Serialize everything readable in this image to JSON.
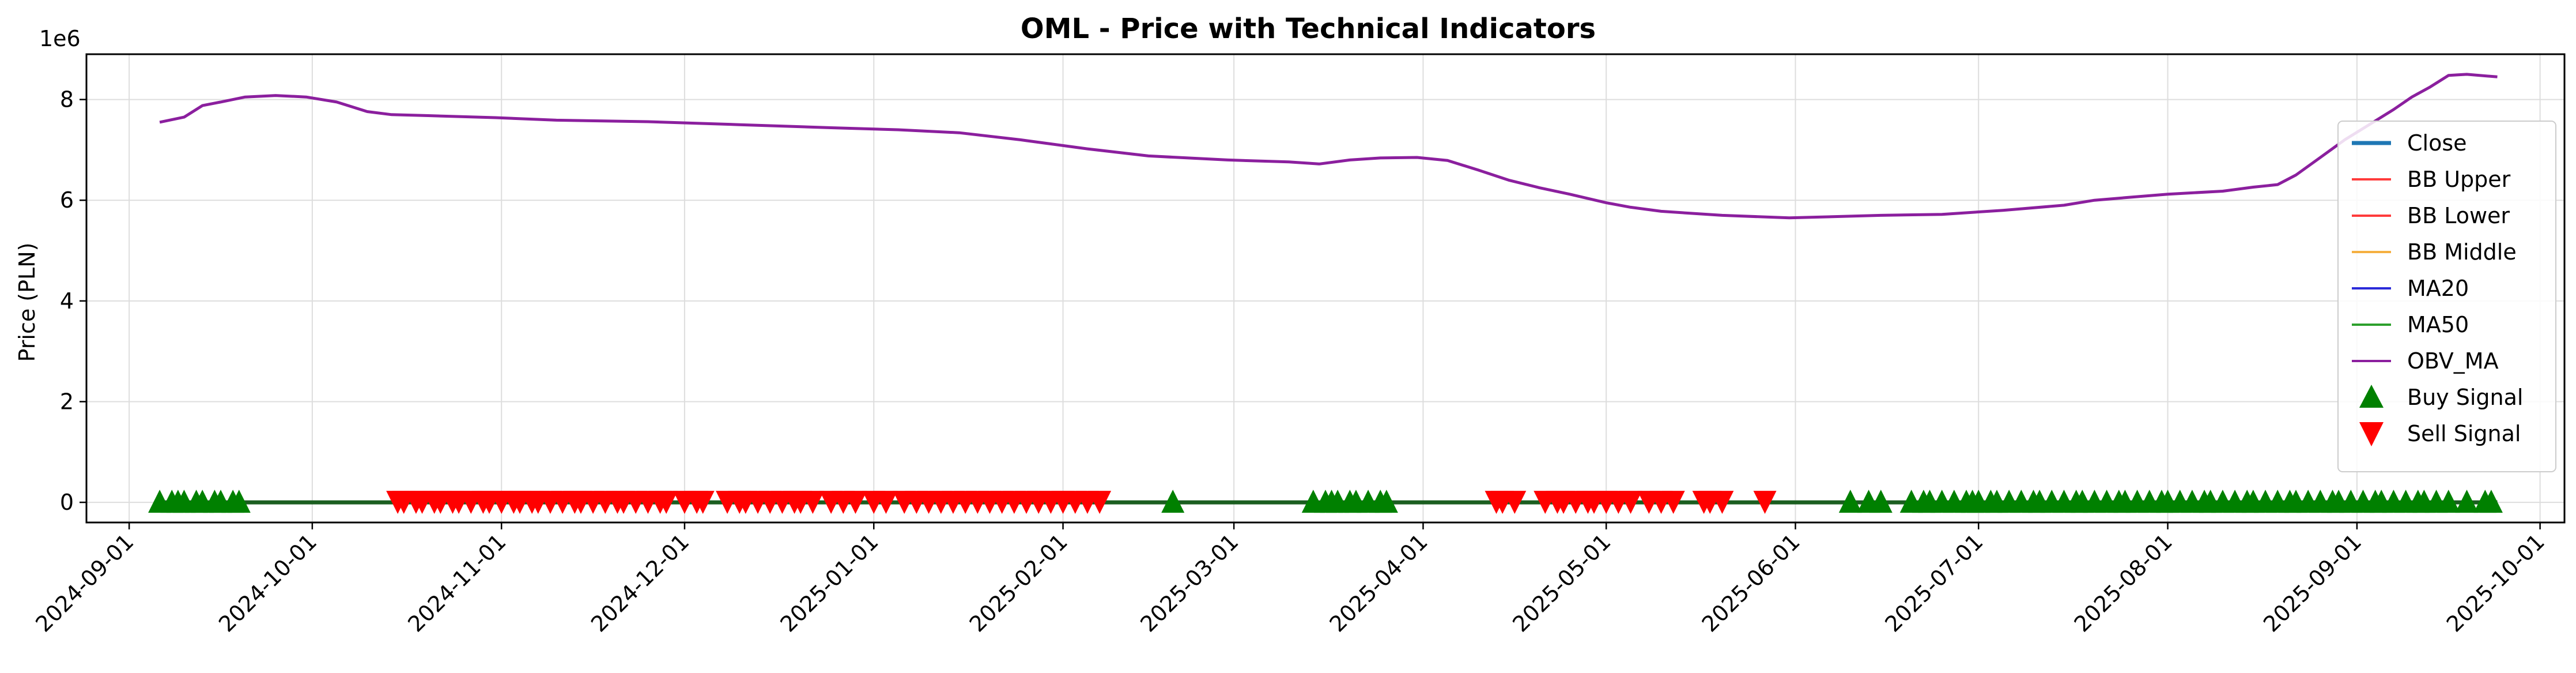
{
  "chart_data": {
    "type": "line",
    "title": "OML - Price with Technical Indicators",
    "ylabel": "Price (PLN)",
    "xlabel": "",
    "y_multiplier": "1e6",
    "ylim": [
      -400000,
      8900000
    ],
    "xlim": [
      "2024-08-25",
      "2025-10-05"
    ],
    "y_ticks": [
      0,
      2000000,
      4000000,
      6000000,
      8000000
    ],
    "y_tick_labels": [
      "0",
      "2",
      "4",
      "6",
      "8"
    ],
    "x_ticks": [
      "2024-09-01",
      "2024-10-01",
      "2024-11-01",
      "2024-12-01",
      "2025-01-01",
      "2025-02-01",
      "2025-03-01",
      "2025-04-01",
      "2025-05-01",
      "2025-06-01",
      "2025-07-01",
      "2025-08-01",
      "2025-09-01",
      "2025-10-01"
    ],
    "grid": true,
    "legend_position": "right",
    "colors": {
      "close": "#1f77b4",
      "bb_upper": "#ff3b3b",
      "bb_lower": "#ff3b3b",
      "bb_middle": "#f5b041",
      "ma20": "#2b2bd9",
      "ma50": "#2ca02c",
      "obv_ma": "#8b1f9e",
      "buy": "#008000",
      "sell": "#ff0000",
      "price_flat": "#1b5e20"
    },
    "legend": [
      {
        "key": "close",
        "label": "Close",
        "kind": "line-thick"
      },
      {
        "key": "bb_upper",
        "label": "BB Upper",
        "kind": "line"
      },
      {
        "key": "bb_lower",
        "label": "BB Lower",
        "kind": "line"
      },
      {
        "key": "bb_middle",
        "label": "BB Middle",
        "kind": "line"
      },
      {
        "key": "ma20",
        "label": "MA20",
        "kind": "line"
      },
      {
        "key": "ma50",
        "label": "MA50",
        "kind": "line"
      },
      {
        "key": "obv_ma",
        "label": "OBV_MA",
        "kind": "line"
      },
      {
        "key": "buy",
        "label": "Buy Signal",
        "kind": "tri-up"
      },
      {
        "key": "sell",
        "label": "Sell Signal",
        "kind": "tri-down"
      }
    ],
    "price_line": {
      "x_start": "2024-09-06",
      "x_end": "2025-09-24",
      "y": 0
    },
    "series": [
      {
        "name": "OBV_MA",
        "x": [
          "2024-09-06",
          "2024-09-10",
          "2024-09-13",
          "2024-09-16",
          "2024-09-20",
          "2024-09-25",
          "2024-09-30",
          "2024-10-05",
          "2024-10-10",
          "2024-10-14",
          "2024-10-20",
          "2024-10-31",
          "2024-11-10",
          "2024-11-25",
          "2024-12-10",
          "2024-12-25",
          "2025-01-05",
          "2025-01-15",
          "2025-01-25",
          "2025-02-05",
          "2025-02-15",
          "2025-02-28",
          "2025-03-10",
          "2025-03-15",
          "2025-03-20",
          "2025-03-25",
          "2025-03-31",
          "2025-04-05",
          "2025-04-10",
          "2025-04-15",
          "2025-04-20",
          "2025-04-25",
          "2025-05-01",
          "2025-05-05",
          "2025-05-10",
          "2025-05-20",
          "2025-05-31",
          "2025-06-15",
          "2025-06-25",
          "2025-07-05",
          "2025-07-15",
          "2025-07-20",
          "2025-07-25",
          "2025-08-01",
          "2025-08-10",
          "2025-08-15",
          "2025-08-19",
          "2025-08-22",
          "2025-08-26",
          "2025-08-30",
          "2025-09-03",
          "2025-09-07",
          "2025-09-10",
          "2025-09-13",
          "2025-09-16",
          "2025-09-19",
          "2025-09-24"
        ],
        "y": [
          7550000,
          7650000,
          7880000,
          7950000,
          8050000,
          8080000,
          8050000,
          7950000,
          7760000,
          7700000,
          7680000,
          7640000,
          7590000,
          7560000,
          7500000,
          7440000,
          7400000,
          7340000,
          7200000,
          7020000,
          6880000,
          6800000,
          6760000,
          6720000,
          6800000,
          6840000,
          6850000,
          6790000,
          6600000,
          6400000,
          6250000,
          6120000,
          5950000,
          5860000,
          5780000,
          5700000,
          5650000,
          5700000,
          5720000,
          5800000,
          5900000,
          6000000,
          6050000,
          6120000,
          6180000,
          6260000,
          6310000,
          6500000,
          6850000,
          7200000,
          7500000,
          7800000,
          8050000,
          8250000,
          8480000,
          8500000,
          8450000
        ]
      }
    ],
    "buy_signals": [
      "2024-09-06",
      "2024-09-08",
      "2024-09-09",
      "2024-09-10",
      "2024-09-12",
      "2024-09-13",
      "2024-09-15",
      "2024-09-16",
      "2024-09-18",
      "2024-09-19",
      "2025-02-19",
      "2025-03-14",
      "2025-03-16",
      "2025-03-17",
      "2025-03-18",
      "2025-03-20",
      "2025-03-21",
      "2025-03-23",
      "2025-03-25",
      "2025-03-26",
      "2025-06-10",
      "2025-06-13",
      "2025-06-15",
      "2025-06-20",
      "2025-06-22",
      "2025-06-23",
      "2025-06-25",
      "2025-06-27",
      "2025-06-29",
      "2025-06-30",
      "2025-07-01",
      "2025-07-03",
      "2025-07-04",
      "2025-07-06",
      "2025-07-08",
      "2025-07-10",
      "2025-07-11",
      "2025-07-13",
      "2025-07-15",
      "2025-07-17",
      "2025-07-18",
      "2025-07-20",
      "2025-07-22",
      "2025-07-24",
      "2025-07-25",
      "2025-07-27",
      "2025-07-29",
      "2025-07-31",
      "2025-08-01",
      "2025-08-03",
      "2025-08-05",
      "2025-08-07",
      "2025-08-08",
      "2025-08-10",
      "2025-08-12",
      "2025-08-14",
      "2025-08-15",
      "2025-08-17",
      "2025-08-19",
      "2025-08-21",
      "2025-08-22",
      "2025-08-24",
      "2025-08-26",
      "2025-08-28",
      "2025-08-29",
      "2025-08-31",
      "2025-09-02",
      "2025-09-04",
      "2025-09-05",
      "2025-09-07",
      "2025-09-09",
      "2025-09-11",
      "2025-09-12",
      "2025-09-14",
      "2025-09-16",
      "2025-09-19",
      "2025-09-22",
      "2025-09-23"
    ],
    "sell_signals": [
      "2024-10-15",
      "2024-10-16",
      "2024-10-18",
      "2024-10-19",
      "2024-10-21",
      "2024-10-22",
      "2024-10-24",
      "2024-10-25",
      "2024-10-27",
      "2024-10-29",
      "2024-10-30",
      "2024-11-01",
      "2024-11-03",
      "2024-11-04",
      "2024-11-06",
      "2024-11-07",
      "2024-11-09",
      "2024-11-11",
      "2024-11-13",
      "2024-11-14",
      "2024-11-16",
      "2024-11-18",
      "2024-11-20",
      "2024-11-21",
      "2024-11-23",
      "2024-11-25",
      "2024-11-27",
      "2024-11-28",
      "2024-12-01",
      "2024-12-03",
      "2024-12-04",
      "2024-12-08",
      "2024-12-10",
      "2024-12-11",
      "2024-12-13",
      "2024-12-15",
      "2024-12-17",
      "2024-12-19",
      "2024-12-20",
      "2024-12-22",
      "2024-12-25",
      "2024-12-27",
      "2024-12-29",
      "2025-01-01",
      "2025-01-03",
      "2025-01-06",
      "2025-01-08",
      "2025-01-10",
      "2025-01-12",
      "2025-01-14",
      "2025-01-16",
      "2025-01-18",
      "2025-01-20",
      "2025-01-22",
      "2025-01-24",
      "2025-01-26",
      "2025-01-28",
      "2025-01-30",
      "2025-02-01",
      "2025-02-03",
      "2025-02-05",
      "2025-02-07",
      "2025-04-13",
      "2025-04-14",
      "2025-04-16",
      "2025-04-21",
      "2025-04-23",
      "2025-04-24",
      "2025-04-26",
      "2025-04-28",
      "2025-04-29",
      "2025-05-01",
      "2025-05-03",
      "2025-05-05",
      "2025-05-08",
      "2025-05-10",
      "2025-05-12",
      "2025-05-17",
      "2025-05-18",
      "2025-05-20",
      "2025-05-27"
    ]
  }
}
